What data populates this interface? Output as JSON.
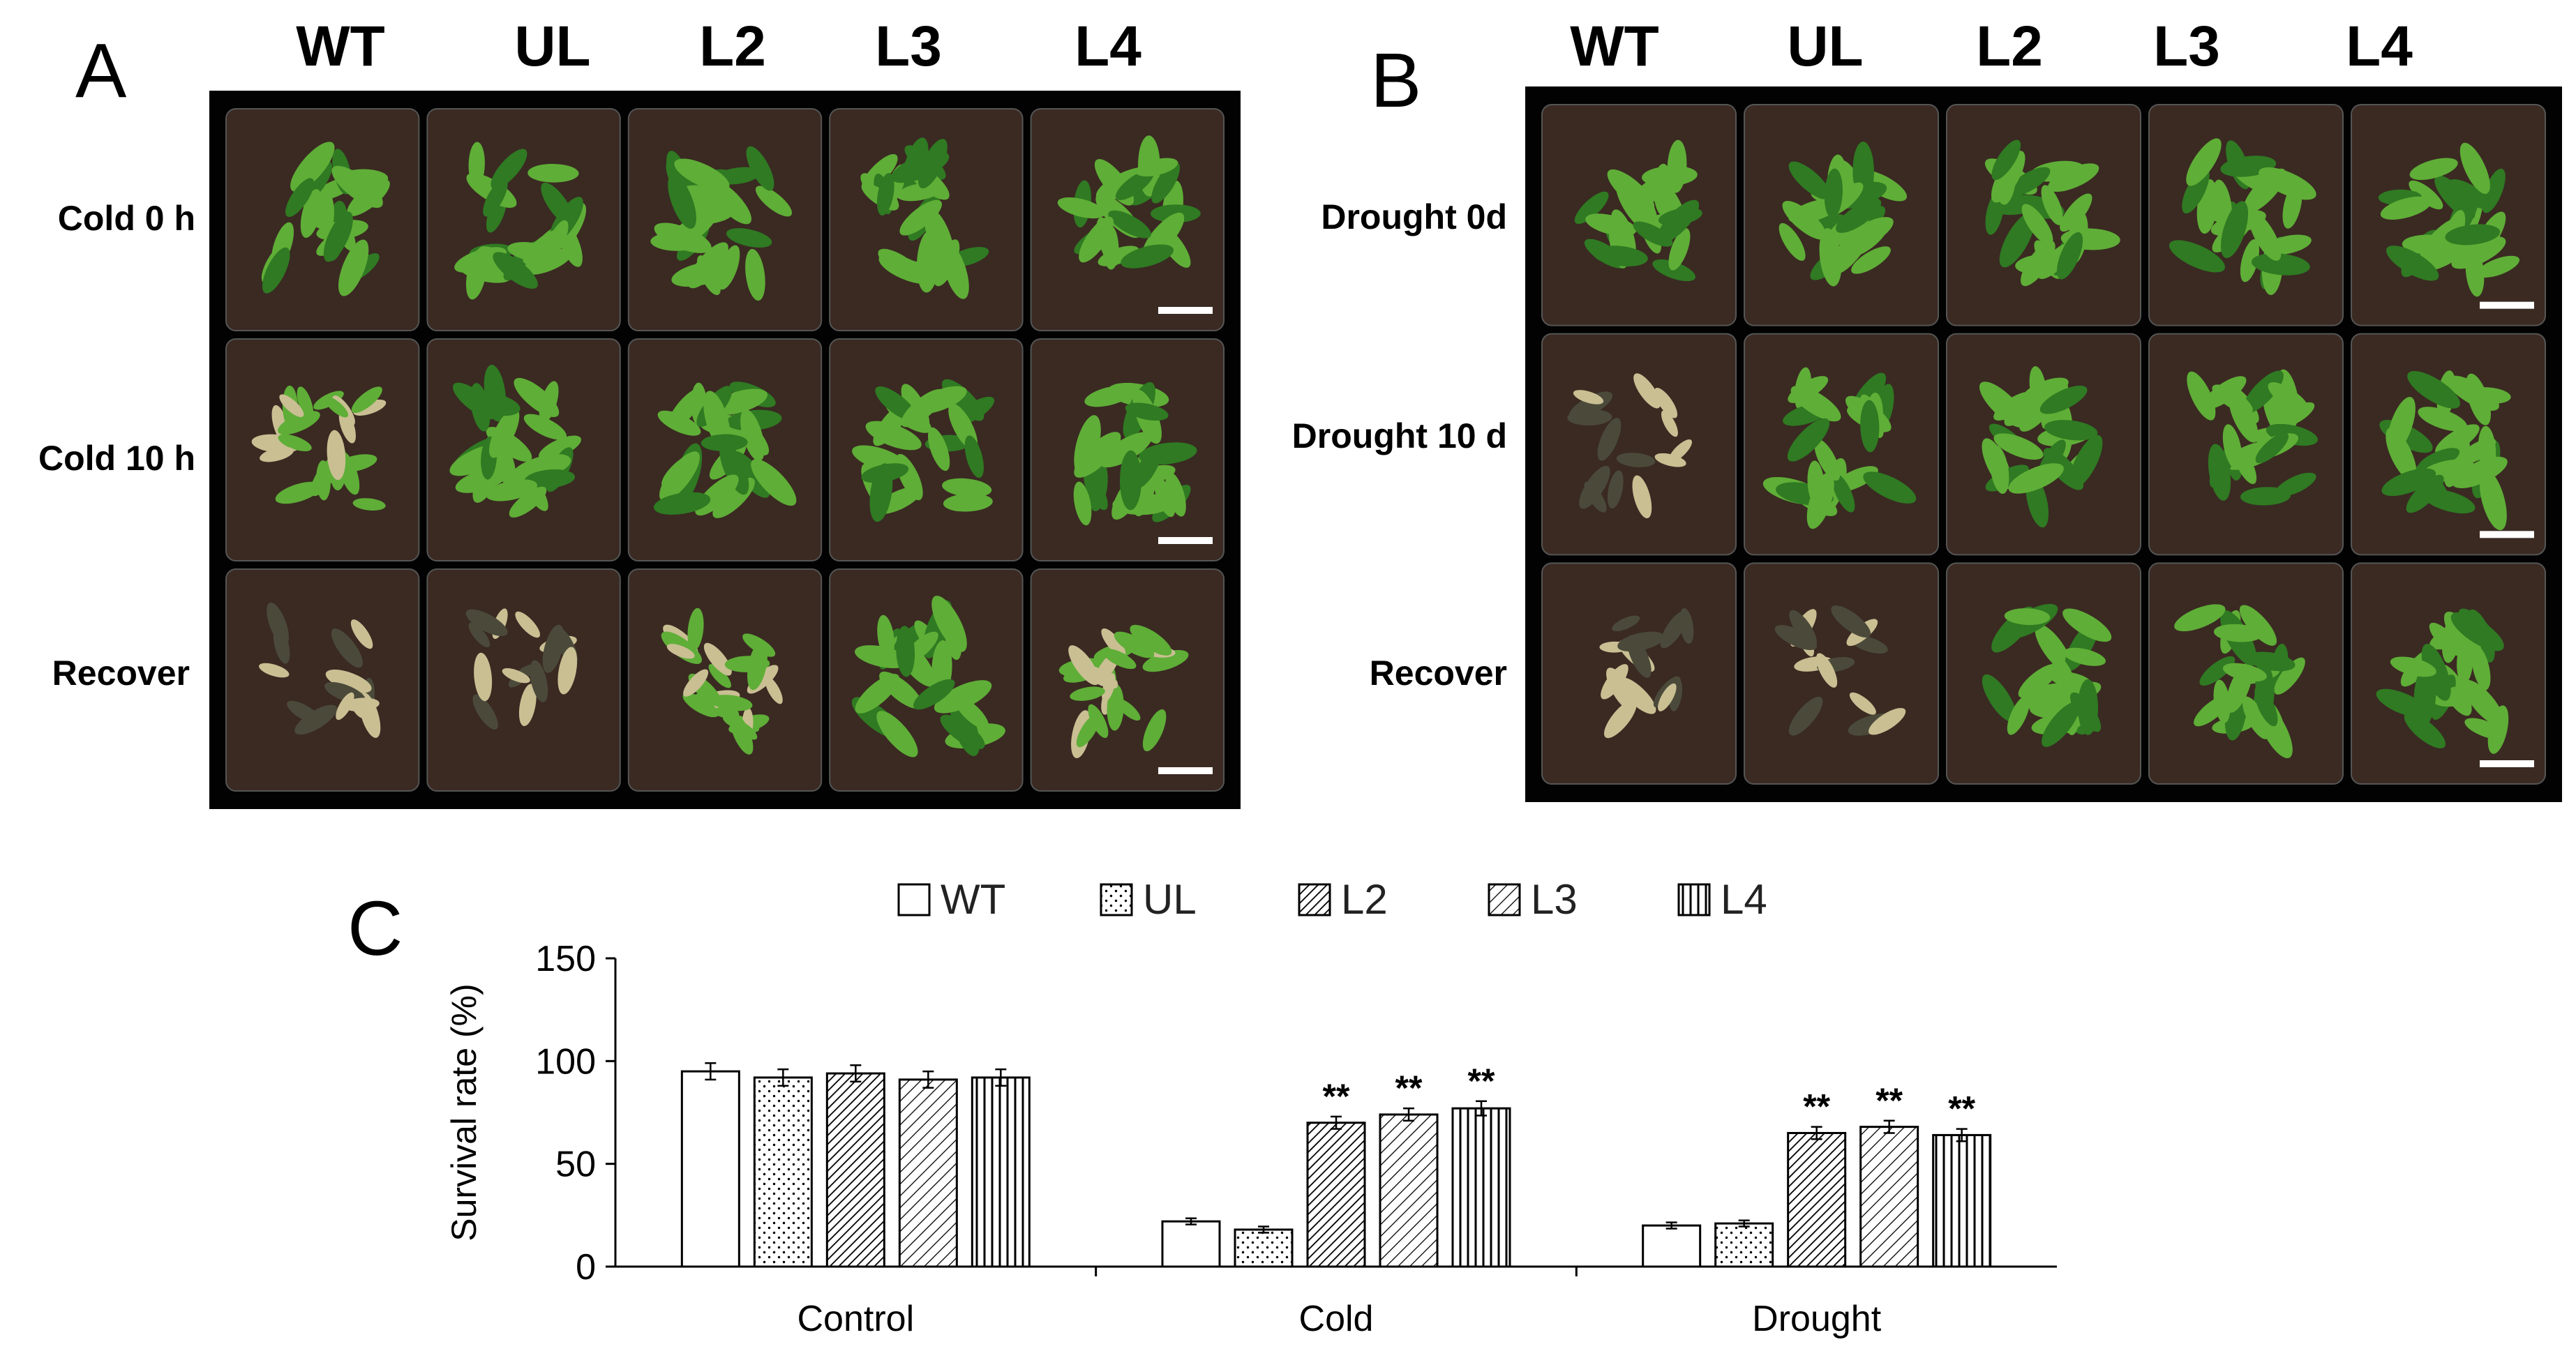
{
  "panels": {
    "a": {
      "letter": "A",
      "columns": [
        "WT",
        "UL",
        "L2",
        "L3",
        "L4"
      ],
      "rows": [
        "Cold 0 h",
        "Cold 10 h",
        "Recover"
      ]
    },
    "b": {
      "letter": "B",
      "columns": [
        "WT",
        "UL",
        "L2",
        "L3",
        "L4"
      ],
      "rows": [
        "Drought 0d",
        "Drought 10 d",
        "Recover"
      ]
    },
    "c": {
      "letter": "C"
    }
  },
  "colors": {
    "photo_background": "#020202",
    "soil": "#3a2a22",
    "leaf_healthy": "#5fae37",
    "leaf_dark": "#2f7a22",
    "leaf_dead": "#c9bf93",
    "bar_edge": "#000000"
  },
  "chart_data": {
    "type": "bar",
    "categories": [
      "Control",
      "Cold",
      "Drought"
    ],
    "series": [
      {
        "name": "WT",
        "pattern": "solid-white",
        "values": [
          95,
          22,
          20
        ],
        "errors": [
          4,
          1.5,
          1.5
        ],
        "significance": [
          "",
          "",
          ""
        ]
      },
      {
        "name": "UL",
        "pattern": "dots",
        "values": [
          92,
          18,
          21
        ],
        "errors": [
          4,
          1.5,
          1.5
        ],
        "significance": [
          "",
          "",
          ""
        ]
      },
      {
        "name": "L2",
        "pattern": "dense-diagonal",
        "values": [
          94,
          70,
          65
        ],
        "errors": [
          4,
          3,
          3
        ],
        "significance": [
          "",
          "**",
          "**"
        ]
      },
      {
        "name": "L3",
        "pattern": "sparse-diagonal",
        "values": [
          91,
          74,
          68
        ],
        "errors": [
          4,
          3,
          3
        ],
        "significance": [
          "",
          "**",
          "**"
        ]
      },
      {
        "name": "L4",
        "pattern": "vertical-lines",
        "values": [
          92,
          77,
          64
        ],
        "errors": [
          4,
          3.5,
          3
        ],
        "significance": [
          "",
          "**",
          "**"
        ]
      }
    ],
    "xlabel": "",
    "ylabel": "Survival rate (%)",
    "ylim": [
      0,
      150
    ],
    "yticks": [
      "0",
      "50",
      "100",
      "150"
    ],
    "grid": false,
    "legend_position": "top"
  }
}
